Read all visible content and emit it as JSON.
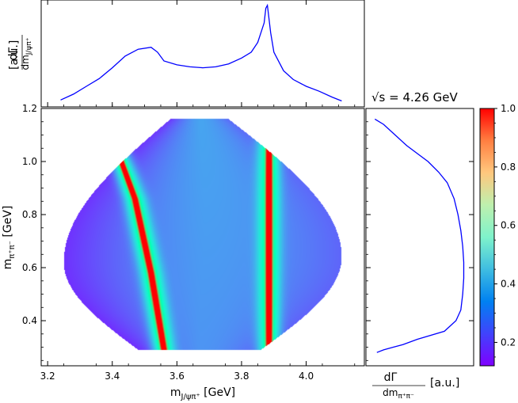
{
  "annotation": "√s = 4.26 GeV",
  "chart_data": [
    {
      "name": "dalitz",
      "type": "heatmap",
      "xlabel": "m_{J/ψπ+} [GeV]",
      "ylabel": "m_{π+π−} [GeV]",
      "xlim": [
        3.18,
        4.18
      ],
      "ylim": [
        0.23,
        1.2
      ],
      "xticks": [
        "3.2",
        "3.4",
        "3.6",
        "3.8",
        "4.0"
      ],
      "xtick_values": [
        3.2,
        3.4,
        3.6,
        3.8,
        4.0
      ],
      "yticks": [
        "0.4",
        "0.6",
        "0.8",
        "1.0",
        "1.2"
      ],
      "ytick_values": [
        0.4,
        0.6,
        0.8,
        1.0,
        1.2
      ],
      "boundary": {
        "top_y": 1.16,
        "top_x_range": [
          3.58,
          3.76
        ],
        "bottom_y": 0.29,
        "bottom_x_range": [
          3.48,
          3.86
        ],
        "max_x": 4.11,
        "max_x_at_y": 0.64,
        "min_x": 3.25,
        "min_x_at_y": 0.62
      },
      "band_z3900": {
        "x": 3.885,
        "y_range": [
          0.29,
          1.06
        ],
        "value": 1.0
      },
      "band_reflection": {
        "points": [
          [
            3.41,
            1.06
          ],
          [
            3.47,
            0.86
          ],
          [
            3.52,
            0.58
          ],
          [
            3.56,
            0.29
          ]
        ],
        "value": 1.0
      },
      "background_level": [
        0.15,
        0.32
      ]
    },
    {
      "name": "top-projection",
      "type": "line",
      "ylabel": "dΓ/dm_{J/ψπ+}",
      "yunit": "[a.u.]",
      "x": [
        3.24,
        3.28,
        3.32,
        3.36,
        3.4,
        3.44,
        3.48,
        3.52,
        3.54,
        3.56,
        3.6,
        3.64,
        3.68,
        3.72,
        3.76,
        3.8,
        3.83,
        3.85,
        3.87,
        3.875,
        3.88,
        3.89,
        3.9,
        3.93,
        3.96,
        4.0,
        4.04,
        4.08,
        4.11
      ],
      "y": [
        0.03,
        0.09,
        0.17,
        0.25,
        0.36,
        0.48,
        0.55,
        0.57,
        0.52,
        0.43,
        0.39,
        0.37,
        0.36,
        0.37,
        0.4,
        0.46,
        0.52,
        0.62,
        0.82,
        0.97,
        1.0,
        0.72,
        0.52,
        0.33,
        0.24,
        0.17,
        0.12,
        0.06,
        0.02
      ],
      "ylim": [
        0,
        1.03
      ]
    },
    {
      "name": "right-projection",
      "type": "line",
      "xlabel": "dΓ/dm_{π+π−}",
      "xunit": "[a.u.]",
      "y": [
        1.16,
        1.14,
        1.1,
        1.06,
        1.03,
        1.0,
        0.96,
        0.92,
        0.86,
        0.8,
        0.74,
        0.68,
        0.62,
        0.56,
        0.5,
        0.44,
        0.4,
        0.36,
        0.33,
        0.31,
        0.3,
        0.29,
        0.28
      ],
      "x": [
        0.06,
        0.15,
        0.27,
        0.39,
        0.5,
        0.61,
        0.72,
        0.81,
        0.88,
        0.92,
        0.95,
        0.97,
        0.98,
        0.98,
        0.97,
        0.95,
        0.9,
        0.78,
        0.5,
        0.35,
        0.25,
        0.15,
        0.08
      ],
      "xlim": [
        0,
        1.05
      ]
    },
    {
      "name": "colorbar",
      "type": "heatmap",
      "colormap": "rainbow",
      "range": [
        0.12,
        1.0
      ],
      "ticks": [
        "0.2",
        "0.4",
        "0.6",
        "0.8",
        "1.0"
      ],
      "tick_values": [
        0.2,
        0.4,
        0.6,
        0.8,
        1.0
      ]
    }
  ]
}
